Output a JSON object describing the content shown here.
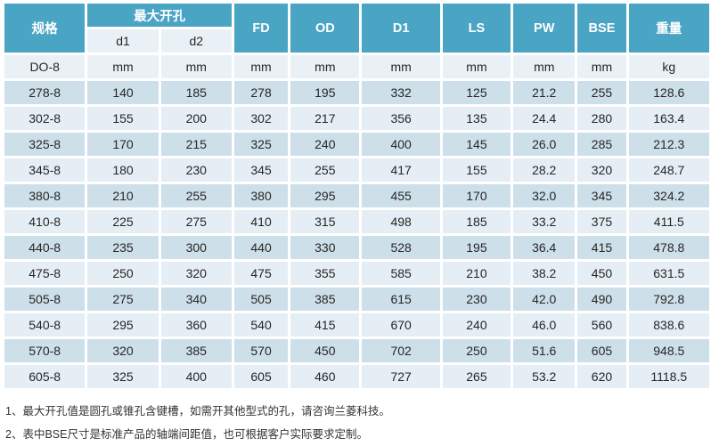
{
  "theme": {
    "header_bg": "#4AA5C5",
    "header_text": "#FFFFFF",
    "subheader_bg": "#EAF1F6",
    "row_alt_dark": "#CDDFE9",
    "row_alt_light": "#E4EEF4",
    "cell_text": "#262626"
  },
  "table": {
    "header": {
      "spec": "规格",
      "max_opening": "最大开孔",
      "d1": "d1",
      "d2": "d2",
      "cols": [
        "FD",
        "OD",
        "D1",
        "LS",
        "PW",
        "BSE",
        "重量"
      ]
    },
    "units_row": [
      "DO-8",
      "mm",
      "mm",
      "mm",
      "mm",
      "mm",
      "mm",
      "mm",
      "mm",
      "kg"
    ],
    "rows": [
      [
        "278-8",
        "140",
        "185",
        "278",
        "195",
        "332",
        "125",
        "21.2",
        "255",
        "128.6"
      ],
      [
        "302-8",
        "155",
        "200",
        "302",
        "217",
        "356",
        "135",
        "24.4",
        "280",
        "163.4"
      ],
      [
        "325-8",
        "170",
        "215",
        "325",
        "240",
        "400",
        "145",
        "26.0",
        "285",
        "212.3"
      ],
      [
        "345-8",
        "180",
        "230",
        "345",
        "255",
        "417",
        "155",
        "28.2",
        "320",
        "248.7"
      ],
      [
        "380-8",
        "210",
        "255",
        "380",
        "295",
        "455",
        "170",
        "32.0",
        "345",
        "324.2"
      ],
      [
        "410-8",
        "225",
        "275",
        "410",
        "315",
        "498",
        "185",
        "33.2",
        "375",
        "411.5"
      ],
      [
        "440-8",
        "235",
        "300",
        "440",
        "330",
        "528",
        "195",
        "36.4",
        "415",
        "478.8"
      ],
      [
        "475-8",
        "250",
        "320",
        "475",
        "355",
        "585",
        "210",
        "38.2",
        "450",
        "631.5"
      ],
      [
        "505-8",
        "275",
        "340",
        "505",
        "385",
        "615",
        "230",
        "42.0",
        "490",
        "792.8"
      ],
      [
        "540-8",
        "295",
        "360",
        "540",
        "415",
        "670",
        "240",
        "46.0",
        "560",
        "838.6"
      ],
      [
        "570-8",
        "320",
        "385",
        "570",
        "450",
        "702",
        "250",
        "51.6",
        "605",
        "948.5"
      ],
      [
        "605-8",
        "325",
        "400",
        "605",
        "460",
        "727",
        "265",
        "53.2",
        "620",
        "1118.5"
      ]
    ]
  },
  "footnotes": [
    "1、最大开孔值是圆孔或锥孔含键槽，如需开其他型式的孔，请咨询兰菱科技。",
    "2、表中BSE尺寸是标准产品的轴端间距值，也可根据客户实际要求定制。"
  ]
}
